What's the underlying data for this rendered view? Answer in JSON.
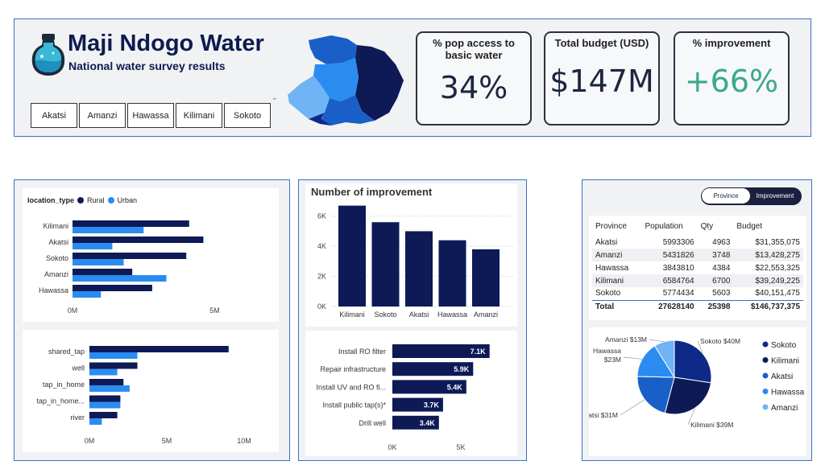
{
  "header": {
    "title": "Maji Ndogo Water",
    "subtitle": "National water survey results",
    "provinces": [
      "Akatsi",
      "Amanzi",
      "Hawassa",
      "Kilimani",
      "Sokoto"
    ]
  },
  "kpis": [
    {
      "label": "% pop access to basic water",
      "value": "34%",
      "color": "#1c2540"
    },
    {
      "label": "Total budget (USD)",
      "value": "$147M",
      "color": "#1c2540"
    },
    {
      "label": "% improvement",
      "value": "+66%",
      "color": "#3aa98b"
    }
  ],
  "colors": {
    "navy": "#0d1a55",
    "blue": "#2b8cf0",
    "frame": "#3a6fc4"
  },
  "chart_data": [
    {
      "type": "bar",
      "orientation": "horizontal",
      "legend_title": "location_type",
      "categories": [
        "Kilimani",
        "Akatsi",
        "Sokoto",
        "Amanzi",
        "Hawassa"
      ],
      "series": [
        {
          "name": "Rural",
          "values": [
            4.1,
            4.6,
            4.0,
            2.1,
            2.8
          ]
        },
        {
          "name": "Urban",
          "values": [
            2.5,
            1.4,
            1.8,
            3.3,
            1.0
          ]
        }
      ],
      "xticks": [
        "0M",
        "5M"
      ],
      "xlim": [
        0,
        5.5
      ]
    },
    {
      "type": "bar",
      "orientation": "horizontal",
      "categories": [
        "shared_tap",
        "well",
        "tap_in_home",
        "tap_in_home...",
        "river"
      ],
      "series": [
        {
          "name": "",
          "values": [
            9.0,
            3.1,
            2.2,
            2.0,
            1.8
          ]
        },
        {
          "name": "",
          "values": [
            3.1,
            1.8,
            2.6,
            2.0,
            0.8
          ]
        }
      ],
      "xticks": [
        "0M",
        "5M",
        "10M"
      ],
      "xlim": [
        0,
        10
      ]
    },
    {
      "type": "bar",
      "title": "Number of improvement",
      "categories": [
        "Kilimani",
        "Sokoto",
        "Akatsi",
        "Hawassa",
        "Amanzi"
      ],
      "values": [
        6.7,
        5.6,
        5.0,
        4.4,
        3.8
      ],
      "yticks": [
        "0K",
        "2K",
        "4K",
        "6K"
      ],
      "ylim": [
        0,
        7
      ]
    },
    {
      "type": "bar",
      "orientation": "horizontal",
      "categories": [
        "Install RO filter",
        "Repair infrastructure",
        "Install UV and RO fi...",
        "Install public tap(s)*",
        "Drill well"
      ],
      "values": [
        7.1,
        5.9,
        5.4,
        3.7,
        3.4
      ],
      "data_labels": [
        "7.1K",
        "5.9K",
        "5.4K",
        "3.7K",
        "3.4K"
      ],
      "xticks": [
        "0K",
        "5K"
      ],
      "xlim": [
        0,
        10
      ]
    },
    {
      "type": "table",
      "columns": [
        "Province",
        "Population",
        "Qty",
        "Budget"
      ],
      "rows": [
        [
          "Akatsi",
          "5993306",
          "4963",
          "$31,355,075"
        ],
        [
          "Amanzi",
          "5431826",
          "3748",
          "$13,428,275"
        ],
        [
          "Hawassa",
          "3843810",
          "4384",
          "$22,553,325"
        ],
        [
          "Kilimani",
          "6584764",
          "6700",
          "$39,249,225"
        ],
        [
          "Sokoto",
          "5774434",
          "5603",
          "$40,151,475"
        ]
      ],
      "total": [
        "Total",
        "27628140",
        "25398",
        "$146,737,375"
      ]
    },
    {
      "type": "pie",
      "slices": [
        {
          "name": "Sokoto",
          "value": 40,
          "label": "Sokoto $40M",
          "color": "#0d2a88"
        },
        {
          "name": "Kilimani",
          "value": 39,
          "label": "Kilimani $39M",
          "color": "#0d1a55"
        },
        {
          "name": "Akatsi",
          "value": 31,
          "label": "Akatsi $31M",
          "color": "#1a5fc8"
        },
        {
          "name": "Hawassa",
          "value": 23,
          "label": "Hawassa $23M",
          "color": "#2b8cf0"
        },
        {
          "name": "Amanzi",
          "value": 13,
          "label": "Amanzi $13M",
          "color": "#6fb4f5"
        }
      ],
      "legend": [
        "Sokoto",
        "Kilimani",
        "Akatsi",
        "Hawassa",
        "Amanzi"
      ]
    }
  ],
  "toggle": {
    "options": [
      "Province",
      "Improvement"
    ]
  }
}
